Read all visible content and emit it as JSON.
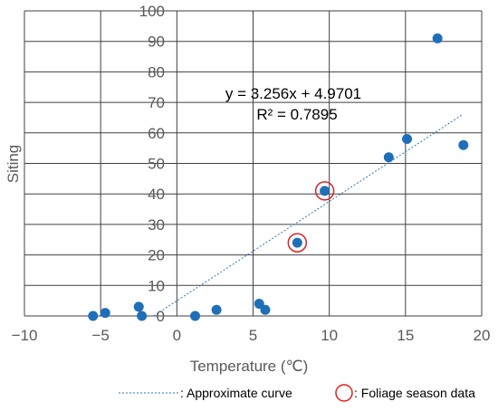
{
  "chart_data": {
    "type": "scatter",
    "xlabel": "Temperature (℃)",
    "ylabel": "Siting",
    "xlim": [
      -10,
      20
    ],
    "ylim": [
      0,
      100
    ],
    "x_ticks": [
      "−10",
      "−5",
      "0",
      "5",
      "10",
      "15",
      "20"
    ],
    "y_ticks": [
      "0",
      "10",
      "20",
      "30",
      "40",
      "50",
      "60",
      "70",
      "80",
      "90",
      "100"
    ],
    "grid": true,
    "points": [
      {
        "x": -5.5,
        "y": 0
      },
      {
        "x": -4.7,
        "y": 1
      },
      {
        "x": -2.5,
        "y": 3
      },
      {
        "x": -2.3,
        "y": 0
      },
      {
        "x": 1.2,
        "y": 0
      },
      {
        "x": 2.6,
        "y": 2
      },
      {
        "x": 5.4,
        "y": 4
      },
      {
        "x": 5.8,
        "y": 2
      },
      {
        "x": 7.9,
        "y": 24
      },
      {
        "x": 9.7,
        "y": 41
      },
      {
        "x": 13.9,
        "y": 52
      },
      {
        "x": 15.1,
        "y": 58
      },
      {
        "x": 17.1,
        "y": 91
      },
      {
        "x": 18.8,
        "y": 56
      }
    ],
    "highlighted_points": [
      {
        "x": 7.9,
        "y": 24
      },
      {
        "x": 9.7,
        "y": 41
      }
    ],
    "trendline": {
      "equation": "y = 3.256x + 4.9701",
      "r_squared": "R² = 0.7895",
      "slope": 3.256,
      "intercept": 4.9701,
      "x_start": -1.53,
      "x_end": 18.7
    },
    "legend": {
      "placement": "bottom",
      "items": [
        {
          "label": ": Approximate curve",
          "kind": "dashed-line"
        },
        {
          "label": ": Foliage season data",
          "kind": "circle"
        }
      ]
    },
    "colors": {
      "point": "#1f6fb8",
      "trendline": "#2e75b6",
      "highlight": "#e02020",
      "grid": "#404040",
      "tick_text": "#595959"
    }
  }
}
